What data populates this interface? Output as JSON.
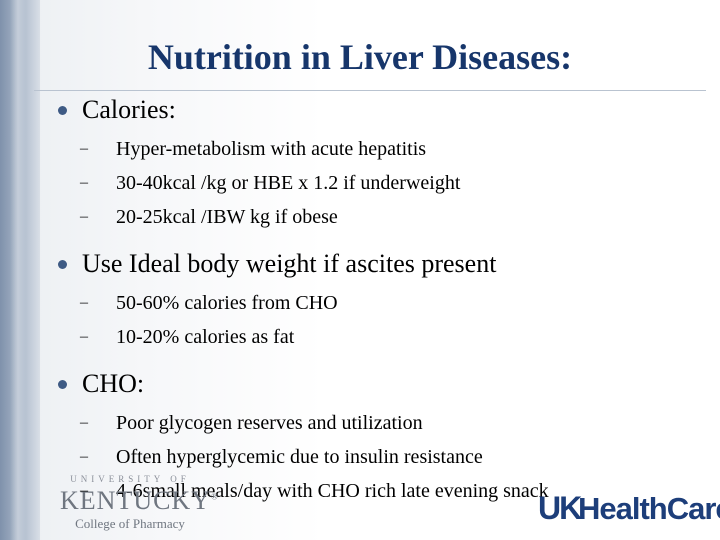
{
  "slide": {
    "title": "Nutrition in Liver Diseases:",
    "bullets": [
      {
        "text": "Calories:",
        "subs": [
          "Hyper-metabolism with acute hepatitis",
          "30-40kcal /kg  or  HBE x 1.2 if underweight",
          "20-25kcal /IBW kg if obese"
        ]
      },
      {
        "text": "Use Ideal body weight if ascites present",
        "subs": [
          "50-60% calories from CHO",
          "10-20% calories as fat"
        ]
      },
      {
        "text": "CHO:",
        "subs": [
          "Poor glycogen reserves and utilization",
          "Often hyperglycemic due to insulin resistance",
          "4-6small meals/day with CHO rich late evening snack"
        ]
      }
    ]
  },
  "footer": {
    "uk_logo": {
      "university_of": "UNIVERSITY OF",
      "kentucky": "KENTUCKY",
      "registered": "®",
      "college": "College of Pharmacy"
    },
    "healthcare_logo": {
      "uk": "UK",
      "healthcare": "HealthCare"
    }
  },
  "colors": {
    "title": "#17366b",
    "bullet": "#3e5a84",
    "side_band": "#8596ae",
    "logo_blue": "#1d3e7a"
  }
}
